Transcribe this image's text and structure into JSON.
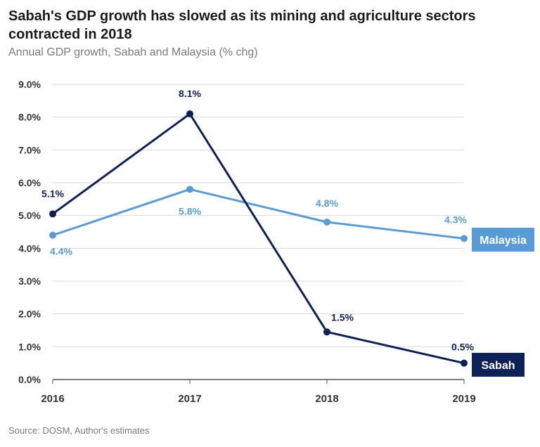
{
  "title": "Sabah's GDP growth has slowed as its mining and agriculture sectors contracted in 2018",
  "subtitle": "Annual GDP growth, Sabah and Malaysia (% chg)",
  "source": "Source: DOSM, Author's estimates",
  "chart_data": {
    "type": "line",
    "categories": [
      "2016",
      "2017",
      "2018",
      "2019"
    ],
    "ylim": [
      0,
      9
    ],
    "ytick_labels": [
      "0.0%",
      "1.0%",
      "2.0%",
      "3.0%",
      "4.0%",
      "5.0%",
      "6.0%",
      "7.0%",
      "8.0%",
      "9.0%"
    ],
    "grid": true,
    "series": [
      {
        "name": "Sabah",
        "color": "#0d2157",
        "values": [
          5.05,
          8.1,
          1.45,
          0.5
        ],
        "labels": [
          "5.1%",
          "8.1%",
          "1.5%",
          "0.5%"
        ]
      },
      {
        "name": "Malaysia",
        "color": "#5b9bd5",
        "values": [
          4.4,
          5.8,
          4.8,
          4.3
        ],
        "labels": [
          "4.4%",
          "5.8%",
          "4.8%",
          "4.3%"
        ]
      }
    ]
  }
}
